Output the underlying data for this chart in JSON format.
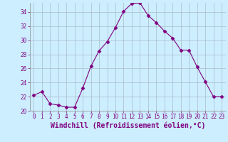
{
  "x": [
    0,
    1,
    2,
    3,
    4,
    5,
    6,
    7,
    8,
    9,
    10,
    11,
    12,
    13,
    14,
    15,
    16,
    17,
    18,
    19,
    20,
    21,
    22,
    23
  ],
  "y": [
    22.2,
    22.7,
    21.0,
    20.8,
    20.5,
    20.5,
    23.2,
    26.3,
    28.5,
    29.8,
    31.8,
    34.1,
    35.2,
    35.3,
    33.5,
    32.5,
    31.3,
    30.3,
    28.6,
    28.6,
    26.2,
    24.1,
    22.0,
    22.0
  ],
  "line_color": "#800080",
  "marker": "D",
  "marker_size": 2.5,
  "bg_color": "#cceeff",
  "grid_color": "#aabbcc",
  "xlabel": "Windchill (Refroidissement éolien,°C)",
  "ylabel": "",
  "ylim": [
    20,
    35
  ],
  "xlim": [
    -0.5,
    23.5
  ],
  "yticks": [
    20,
    22,
    24,
    26,
    28,
    30,
    32,
    34
  ],
  "xticks": [
    0,
    1,
    2,
    3,
    4,
    5,
    6,
    7,
    8,
    9,
    10,
    11,
    12,
    13,
    14,
    15,
    16,
    17,
    18,
    19,
    20,
    21,
    22,
    23
  ],
  "tick_fontsize": 5.5,
  "xlabel_fontsize": 7.0,
  "label_color": "#800080"
}
